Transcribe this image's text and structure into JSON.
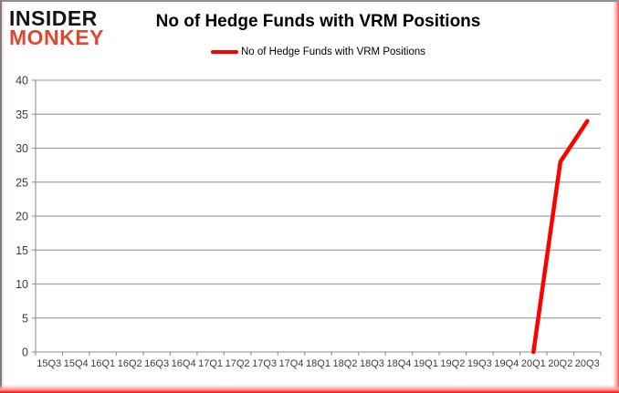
{
  "brand": {
    "line1": "INSIDER",
    "line2": "MONKEY",
    "monkey_color": "#e0482e",
    "insider_color": "#141414"
  },
  "header": {
    "title": "No of Hedge Funds with VRM Positions"
  },
  "legend": {
    "label": "No of Hedge Funds with VRM Positions",
    "line_color": "#ff0000"
  },
  "chart_data": {
    "type": "line",
    "title": "No of Hedge Funds with VRM Positions",
    "categories": [
      "15Q3",
      "15Q4",
      "16Q1",
      "16Q2",
      "16Q3",
      "16Q4",
      "17Q1",
      "17Q2",
      "17Q3",
      "17Q4",
      "18Q1",
      "18Q2",
      "18Q3",
      "18Q4",
      "19Q1",
      "19Q2",
      "19Q3",
      "19Q4",
      "20Q1",
      "20Q2",
      "20Q3"
    ],
    "series": [
      {
        "name": "No of Hedge Funds with VRM Positions",
        "color": "#fe0000",
        "values": [
          null,
          null,
          null,
          null,
          null,
          null,
          null,
          null,
          null,
          null,
          null,
          null,
          null,
          null,
          null,
          null,
          null,
          null,
          0,
          28,
          34
        ]
      }
    ],
    "xlabel": "",
    "ylabel": "",
    "ylim": [
      0,
      40
    ],
    "ytick_step": 5,
    "grid": true,
    "legend_position": "top",
    "grid_color": "#a3a3a3",
    "axis_color": "#9a9a9a",
    "tick_label_color": "#3b3b3b"
  }
}
